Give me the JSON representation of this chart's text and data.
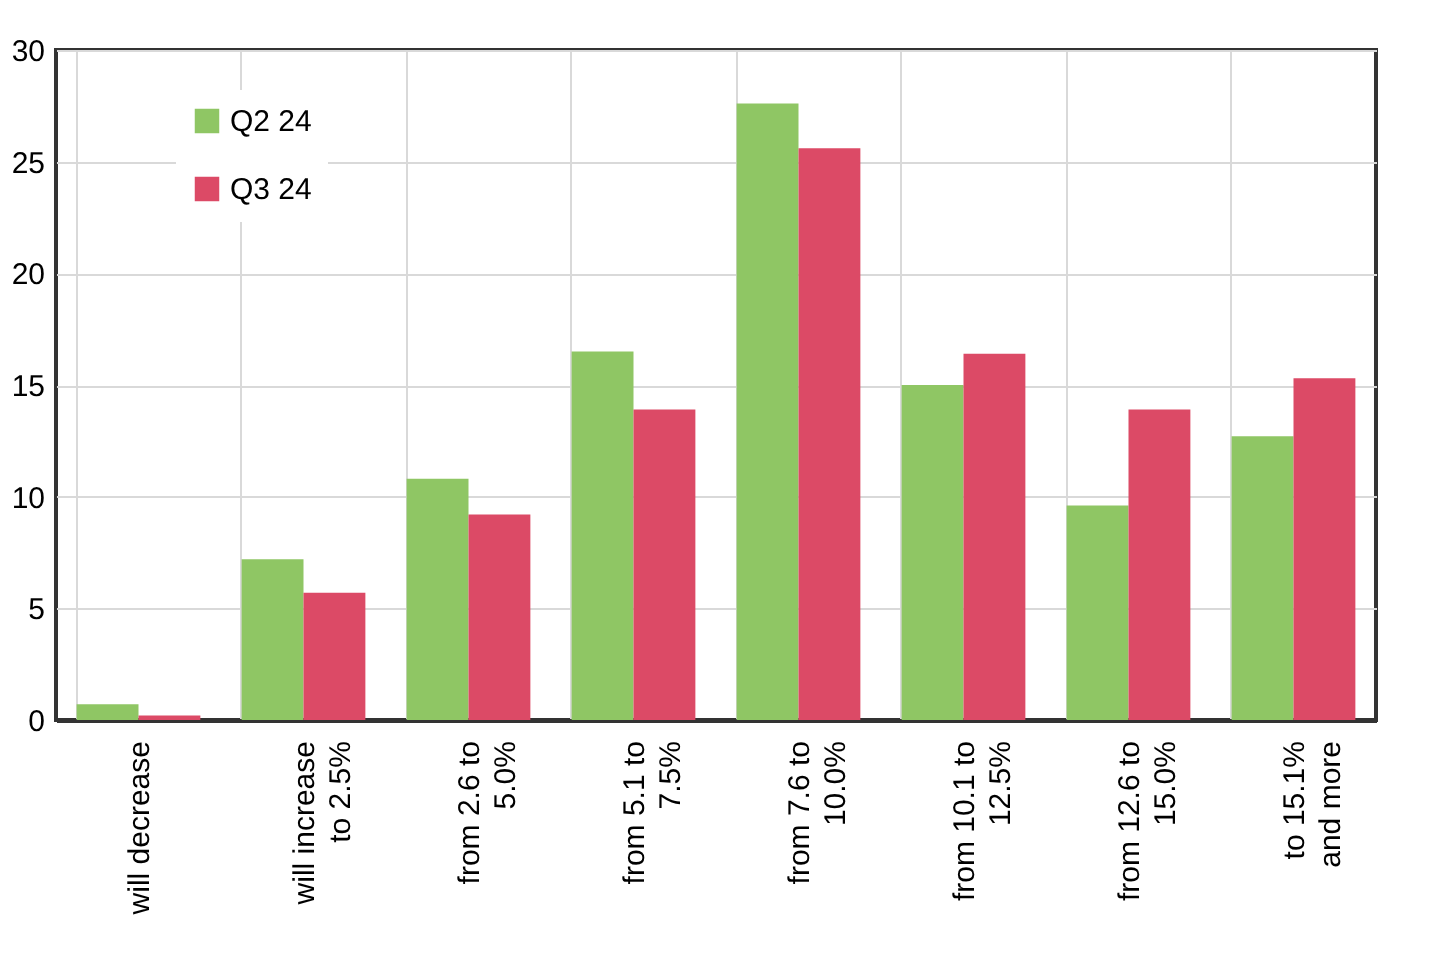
{
  "chart_data": {
    "type": "bar",
    "categories": [
      "will decrease",
      "will increase\nto 2.5%",
      "from 2.6 to\n5.0%",
      "from 5.1 to\n7.5%",
      "from 7.6 to\n10.0%",
      "from 10.1 to\n12.5%",
      "from 12.6 to\n15.0%",
      "to 15.1%\nand more"
    ],
    "series": [
      {
        "name": "Q2 24",
        "color": "#8fc664",
        "values": [
          0.7,
          7.2,
          10.8,
          16.5,
          27.6,
          15.0,
          9.6,
          12.7
        ]
      },
      {
        "name": "Q3 24",
        "color": "#dc4a66",
        "values": [
          0.2,
          5.7,
          9.2,
          13.9,
          25.6,
          16.4,
          13.9,
          15.3
        ]
      }
    ],
    "ylim": [
      0,
      30
    ],
    "yticks": [
      0,
      5,
      10,
      15,
      20,
      25,
      30
    ],
    "grid": true,
    "legend": "top left"
  }
}
